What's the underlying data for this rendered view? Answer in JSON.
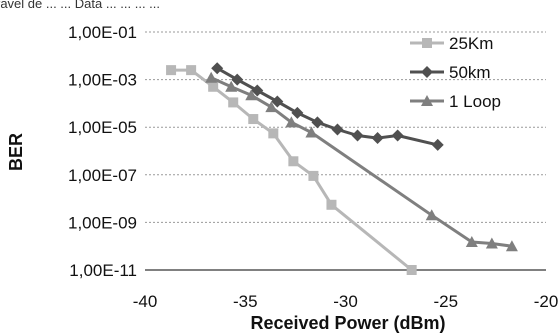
{
  "page": {
    "top_fragment": "ravel de ... ... Data ... ... ... ..."
  },
  "chart_data": {
    "type": "line",
    "title": "",
    "xlabel": "Received Power (dBm)",
    "ylabel": "BER",
    "xlim": [
      -40,
      -20
    ],
    "x_ticks": [
      -40,
      -35,
      -30,
      -25,
      -20
    ],
    "x_tick_labels": [
      "-40",
      "-35",
      "-30",
      "-25",
      "-20"
    ],
    "yscale": "log",
    "ylim": [
      1e-11,
      0.1
    ],
    "y_ticks": [
      0.1,
      0.001,
      1e-05,
      1e-07,
      1e-09,
      1e-11
    ],
    "y_tick_labels": [
      "1,00E-01",
      "1,00E-03",
      "1,00E-05",
      "1,00E-07",
      "1,00E-09",
      "1,00E-11"
    ],
    "grid": true,
    "legend_position": "top-right",
    "series": [
      {
        "name": "25Km",
        "color": "#b7b7b7",
        "marker": "square",
        "x": [
          -38.7,
          -37.7,
          -36.6,
          -35.6,
          -34.6,
          -33.6,
          -32.6,
          -31.6,
          -30.7,
          -26.7
        ],
        "y": [
          0.0025,
          0.0025,
          0.0005,
          0.00011,
          2.2e-05,
          5.5e-06,
          3.7e-07,
          9e-08,
          5.5e-09,
          1e-11
        ]
      },
      {
        "name": "50km",
        "color": "#505050",
        "marker": "diamond",
        "x": [
          -36.4,
          -35.4,
          -34.4,
          -33.4,
          -32.4,
          -31.4,
          -30.4,
          -29.4,
          -28.4,
          -27.4,
          -25.4
        ],
        "y": [
          0.003,
          0.001,
          0.00035,
          0.00012,
          4e-05,
          1.6e-05,
          8e-06,
          4.5e-06,
          3.5e-06,
          4.5e-06,
          1.8e-06
        ]
      },
      {
        "name": "1 Loop",
        "color": "#7f7f7f",
        "marker": "triangle",
        "x": [
          -36.7,
          -35.7,
          -34.7,
          -33.7,
          -32.7,
          -31.7,
          -25.7,
          -23.7,
          -22.7,
          -21.7
        ],
        "y": [
          0.0012,
          0.0005,
          0.00022,
          7e-05,
          1.6e-05,
          6e-06,
          2e-09,
          1.5e-10,
          1.3e-10,
          1e-10
        ]
      }
    ]
  }
}
